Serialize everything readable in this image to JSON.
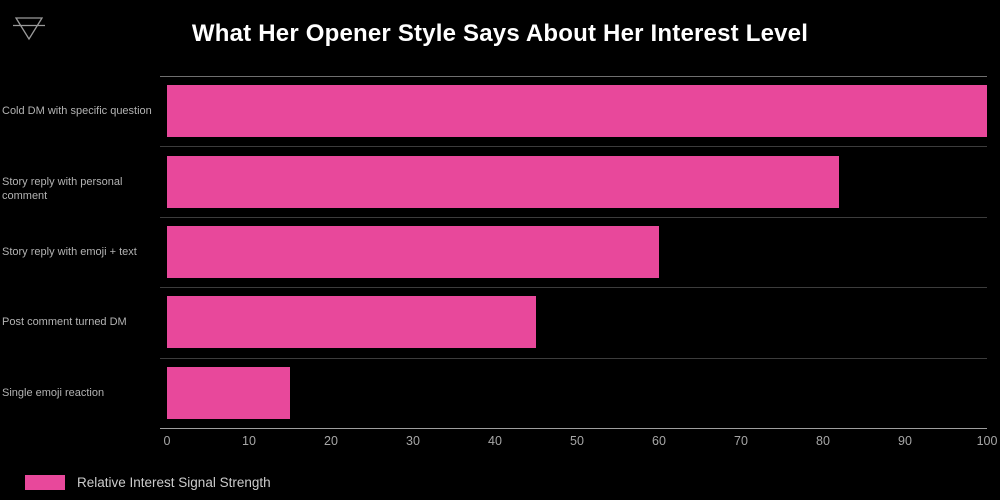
{
  "header": {
    "title": "What Her Opener Style Says About Her Interest Level",
    "logo_icon": "earth-symbol-icon"
  },
  "colors": {
    "background": "#000000",
    "bar": "#e8489b",
    "title": "#ffffff",
    "category_label": "#b3b3b3",
    "tick_label": "#a6a6a6",
    "grid_inner": "#3c3c3c",
    "plot_top_border": "#6f6f6f",
    "axis_line": "#9e9e9e",
    "legend_text": "#cccccc",
    "logo_stroke": "#9a9a9a"
  },
  "chart_data": {
    "type": "bar",
    "orientation": "horizontal",
    "title": "What Her Opener Style Says About Her Interest Level",
    "categories": [
      "Cold DM with specific question",
      "Story reply with personal comment",
      "Story reply with emoji + text",
      "Post comment turned DM",
      "Single emoji reaction"
    ],
    "values": [
      100,
      82,
      60,
      45,
      15
    ],
    "xlabel": "",
    "ylabel": "",
    "xlim": [
      0,
      100
    ],
    "xticks": [
      0,
      10,
      20,
      30,
      40,
      50,
      60,
      70,
      80,
      90,
      100
    ],
    "grid": "horizontal-row-separators",
    "legend": {
      "position": "bottom-left",
      "entries": [
        {
          "label": "Relative Interest Signal Strength",
          "color": "#e8489b"
        }
      ]
    }
  }
}
